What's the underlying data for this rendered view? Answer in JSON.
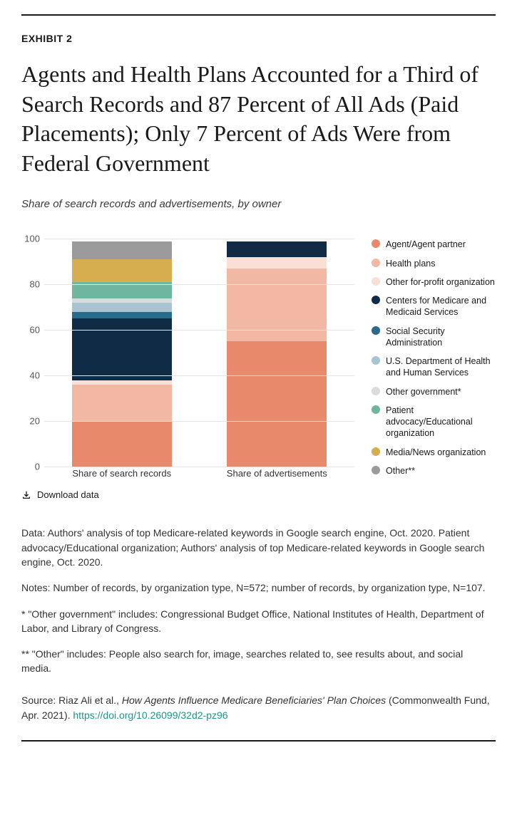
{
  "exhibit_label": "EXHIBIT 2",
  "title": "Agents and Health Plans Accounted for a Third of Search Records and 87 Percent of All Ads (Paid Placements); Only 7 Percent of Ads Were from Federal Government",
  "subtitle": "Share of search records and advertisements, by owner",
  "chart": {
    "type": "stacked-bar",
    "ymax": 100,
    "ytick_step": 20,
    "yticks": [
      0,
      20,
      40,
      60,
      80,
      100
    ],
    "grid_color": "#e5e5e5",
    "categories": [
      "Share of search records",
      "Share of advertisements"
    ],
    "series": [
      {
        "key": "agent",
        "label": "Agent/Agent partner",
        "color": "#e8896b",
        "values": [
          20,
          55
        ]
      },
      {
        "key": "health",
        "label": "Health plans",
        "color": "#f2b8a3",
        "values": [
          16,
          32
        ]
      },
      {
        "key": "otherfp",
        "label": "Other for-profit organization",
        "color": "#f8e0d6",
        "values": [
          2,
          5
        ]
      },
      {
        "key": "cms",
        "label": "Centers for Medicare and Medicaid Services",
        "color": "#0f2b46",
        "values": [
          27,
          7
        ]
      },
      {
        "key": "ssa",
        "label": "Social Security Administration",
        "color": "#2a6a8c",
        "values": [
          3,
          0
        ]
      },
      {
        "key": "hhs",
        "label": "U.S. Department of Health and Human Services",
        "color": "#a9c3d1",
        "values": [
          4,
          0
        ]
      },
      {
        "key": "othergov",
        "label": "Other government*",
        "color": "#d9dcdc",
        "values": [
          2,
          0
        ]
      },
      {
        "key": "patient",
        "label": "Patient advocacy/Educational organization",
        "color": "#6fb59f",
        "values": [
          7,
          0
        ]
      },
      {
        "key": "media",
        "label": "Media/News organization",
        "color": "#d6ad4f",
        "values": [
          10,
          0
        ]
      },
      {
        "key": "other",
        "label": "Other**",
        "color": "#9b9b9b",
        "values": [
          8,
          0
        ]
      }
    ]
  },
  "download_label": "Download data",
  "notes": {
    "data": "Data: Authors' analysis of top Medicare-related keywords in Google search engine, Oct. 2020. Patient advocacy/Educational organization; Authors' analysis of top Medicare-related keywords in Google search engine, Oct. 2020.",
    "n": "Notes: Number of records, by organization type, N=572; number of records, by organization type, N=107.",
    "star1": "* \"Other government\" includes: Congressional Budget Office, National Institutes of Health, Department of Labor, and Library of Congress.",
    "star2": "** \"Other\" includes: People also search for, image, searches related to, see results about, and social media."
  },
  "source": {
    "prefix": "Source: Riaz Ali et al., ",
    "italic": "How Agents Influence Medicare Beneficiaries' Plan Choices",
    "suffix": " (Commonwealth Fund, Apr. 2021). ",
    "link_text": "https://doi.org/10.26099/32d2-pz96"
  }
}
